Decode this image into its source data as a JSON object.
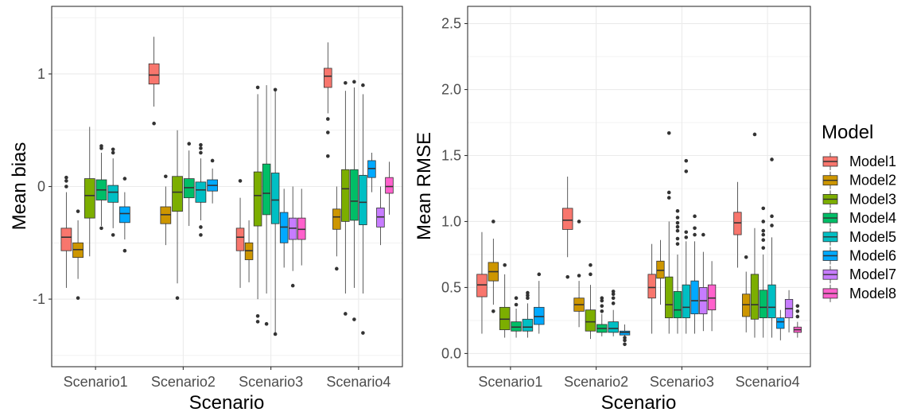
{
  "colors": {
    "Model1": "#F8766D",
    "Model2": "#CD9600",
    "Model3": "#7CAE00",
    "Model4": "#00BE67",
    "Model5": "#00BFC4",
    "Model6": "#00A9FF",
    "Model7": "#C77CFF",
    "Model8": "#FF61CC"
  },
  "legend": {
    "title": "Model",
    "labels": [
      "Model1",
      "Model2",
      "Model3",
      "Model4",
      "Model5",
      "Model6",
      "Model7",
      "Model8"
    ]
  },
  "chart_data": [
    {
      "type": "boxplot",
      "id": "bias",
      "xlabel": "Scenario",
      "ylabel": "Mean bias",
      "ylim": [
        -1.6,
        1.6
      ],
      "yticks": [
        -1,
        0,
        1
      ],
      "ytick_labels": [
        "-1",
        "0",
        "1"
      ],
      "categories": [
        "Scenario1",
        "Scenario2",
        "Scenario3",
        "Scenario4"
      ],
      "groups": [
        {
          "scenario": "Scenario1",
          "boxes": [
            {
              "model": "Model1",
              "whiskerLow": -0.9,
              "q1": -0.57,
              "median": -0.45,
              "q3": -0.37,
              "whiskerHigh": -0.05,
              "outliers": [
                0.0,
                0.05,
                0.08
              ]
            },
            {
              "model": "Model2",
              "whiskerLow": -0.82,
              "q1": -0.63,
              "median": -0.56,
              "q3": -0.5,
              "whiskerHigh": -0.3,
              "outliers": [
                -0.22,
                -0.99
              ]
            },
            {
              "model": "Model3",
              "whiskerLow": -0.62,
              "q1": -0.28,
              "median": -0.08,
              "q3": 0.07,
              "whiskerHigh": 0.53,
              "outliers": []
            },
            {
              "model": "Model4",
              "whiskerLow": -0.35,
              "q1": -0.12,
              "median": -0.03,
              "q3": 0.06,
              "whiskerHigh": 0.3,
              "outliers": [
                -0.37,
                0.34,
                0.36
              ]
            },
            {
              "model": "Model5",
              "whiskerLow": -0.37,
              "q1": -0.14,
              "median": -0.05,
              "q3": 0.01,
              "whiskerHigh": 0.25,
              "outliers": [
                -0.43,
                0.3,
                0.33
              ]
            },
            {
              "model": "Model6",
              "whiskerLow": -0.47,
              "q1": -0.32,
              "median": -0.24,
              "q3": -0.18,
              "whiskerHigh": -0.05,
              "outliers": [
                -0.57,
                0.07
              ]
            }
          ]
        },
        {
          "scenario": "Scenario2",
          "boxes": [
            {
              "model": "Model1",
              "whiskerLow": 0.71,
              "q1": 0.91,
              "median": 0.99,
              "q3": 1.09,
              "whiskerHigh": 1.33,
              "outliers": [
                0.56
              ]
            },
            {
              "model": "Model2",
              "whiskerLow": -0.52,
              "q1": -0.33,
              "median": -0.25,
              "q3": -0.18,
              "whiskerHigh": 0.0,
              "outliers": [
                0.09
              ]
            },
            {
              "model": "Model3",
              "whiskerLow": -0.86,
              "q1": -0.22,
              "median": -0.05,
              "q3": 0.09,
              "whiskerHigh": 0.5,
              "outliers": [
                -0.99
              ]
            },
            {
              "model": "Model4",
              "whiskerLow": -0.35,
              "q1": -0.1,
              "median": -0.01,
              "q3": 0.07,
              "whiskerHigh": 0.32,
              "outliers": [
                0.38
              ]
            },
            {
              "model": "Model5",
              "whiskerLow": -0.3,
              "q1": -0.14,
              "median": -0.03,
              "q3": 0.04,
              "whiskerHigh": 0.25,
              "outliers": [
                -0.36,
                -0.43,
                0.3,
                0.34,
                0.37
              ]
            },
            {
              "model": "Model6",
              "whiskerLow": -0.15,
              "q1": -0.04,
              "median": 0.01,
              "q3": 0.06,
              "whiskerHigh": 0.16,
              "outliers": [
                0.23
              ]
            }
          ]
        },
        {
          "scenario": "Scenario3",
          "boxes": [
            {
              "model": "Model1",
              "whiskerLow": -0.9,
              "q1": -0.57,
              "median": -0.45,
              "q3": -0.37,
              "whiskerHigh": -0.1,
              "outliers": [
                0.05
              ]
            },
            {
              "model": "Model2",
              "whiskerLow": -0.85,
              "q1": -0.65,
              "median": -0.57,
              "q3": -0.5,
              "whiskerHigh": -0.3,
              "outliers": []
            },
            {
              "model": "Model3",
              "whiskerLow": -1.0,
              "q1": -0.35,
              "median": -0.08,
              "q3": 0.13,
              "whiskerHigh": 0.82,
              "outliers": [
                -1.15,
                -1.2,
                0.88
              ]
            },
            {
              "model": "Model4",
              "whiskerLow": -0.95,
              "q1": -0.25,
              "median": -0.06,
              "q3": 0.2,
              "whiskerHigh": 0.9,
              "outliers": [
                -1.22
              ]
            },
            {
              "model": "Model5",
              "whiskerLow": -1.3,
              "q1": -0.33,
              "median": -0.12,
              "q3": 0.12,
              "whiskerHigh": 0.85,
              "outliers": [
                -1.31,
                0.86
              ]
            },
            {
              "model": "Model6",
              "whiskerLow": -0.72,
              "q1": -0.5,
              "median": -0.36,
              "q3": -0.23,
              "whiskerHigh": -0.02,
              "outliers": []
            },
            {
              "model": "Model7",
              "whiskerLow": -0.75,
              "q1": -0.47,
              "median": -0.37,
              "q3": -0.28,
              "whiskerHigh": 0.0,
              "outliers": [
                -0.88
              ]
            },
            {
              "model": "Model8",
              "whiskerLow": -0.7,
              "q1": -0.47,
              "median": -0.38,
              "q3": -0.28,
              "whiskerHigh": -0.02,
              "outliers": []
            }
          ]
        },
        {
          "scenario": "Scenario4",
          "boxes": [
            {
              "model": "Model1",
              "whiskerLow": 0.65,
              "q1": 0.88,
              "median": 0.98,
              "q3": 1.05,
              "whiskerHigh": 1.28,
              "outliers": [
                0.27,
                0.48,
                0.6
              ]
            },
            {
              "model": "Model2",
              "whiskerLow": -0.62,
              "q1": -0.38,
              "median": -0.27,
              "q3": -0.2,
              "whiskerHigh": 0.0,
              "outliers": [
                -0.73
              ]
            },
            {
              "model": "Model3",
              "whiskerLow": -0.95,
              "q1": -0.31,
              "median": -0.02,
              "q3": 0.15,
              "whiskerHigh": 0.85,
              "outliers": [
                -1.13,
                0.92
              ]
            },
            {
              "model": "Model4",
              "whiskerLow": -0.9,
              "q1": -0.3,
              "median": -0.13,
              "q3": 0.15,
              "whiskerHigh": 0.88,
              "outliers": [
                -1.18,
                0.93
              ]
            },
            {
              "model": "Model5",
              "whiskerLow": -0.95,
              "q1": -0.34,
              "median": -0.14,
              "q3": 0.1,
              "whiskerHigh": 0.82,
              "outliers": [
                -1.3,
                0.9
              ]
            },
            {
              "model": "Model6",
              "whiskerLow": -0.05,
              "q1": 0.08,
              "median": 0.16,
              "q3": 0.23,
              "whiskerHigh": 0.3,
              "outliers": []
            },
            {
              "model": "Model7",
              "whiskerLow": -0.52,
              "q1": -0.36,
              "median": -0.27,
              "q3": -0.19,
              "whiskerHigh": 0.0,
              "outliers": []
            },
            {
              "model": "Model8",
              "whiskerLow": -0.25,
              "q1": -0.06,
              "median": 0.0,
              "q3": 0.08,
              "whiskerHigh": 0.22,
              "outliers": []
            }
          ]
        }
      ]
    },
    {
      "type": "boxplot",
      "id": "rmse",
      "xlabel": "Scenario",
      "ylabel": "Mean RMSE",
      "ylim": [
        -0.1,
        2.63
      ],
      "yticks": [
        0,
        0.5,
        1,
        1.5,
        2,
        2.5
      ],
      "ytick_labels": [
        "0.0",
        "0.5",
        "1.0",
        "1.5",
        "2.0",
        "2.5"
      ],
      "categories": [
        "Scenario1",
        "Scenario2",
        "Scenario3",
        "Scenario4"
      ],
      "groups": [
        {
          "scenario": "Scenario1",
          "boxes": [
            {
              "model": "Model1",
              "whiskerLow": 0.15,
              "q1": 0.43,
              "median": 0.52,
              "q3": 0.6,
              "whiskerHigh": 0.92,
              "outliers": []
            },
            {
              "model": "Model2",
              "whiskerLow": 0.37,
              "q1": 0.55,
              "median": 0.62,
              "q3": 0.69,
              "whiskerHigh": 0.87,
              "outliers": [
                0.32,
                1.0
              ]
            },
            {
              "model": "Model3",
              "whiskerLow": 0.12,
              "q1": 0.18,
              "median": 0.26,
              "q3": 0.35,
              "whiskerHigh": 0.6,
              "outliers": [
                0.67
              ]
            },
            {
              "model": "Model4",
              "whiskerLow": 0.12,
              "q1": 0.17,
              "median": 0.2,
              "q3": 0.24,
              "whiskerHigh": 0.34,
              "outliers": [
                0.37,
                0.42
              ]
            },
            {
              "model": "Model5",
              "whiskerLow": 0.12,
              "q1": 0.17,
              "median": 0.2,
              "q3": 0.26,
              "whiskerHigh": 0.38,
              "outliers": [
                0.42,
                0.44,
                0.46
              ]
            },
            {
              "model": "Model6",
              "whiskerLow": 0.15,
              "q1": 0.22,
              "median": 0.28,
              "q3": 0.35,
              "whiskerHigh": 0.55,
              "outliers": [
                0.6
              ]
            }
          ]
        },
        {
          "scenario": "Scenario2",
          "boxes": [
            {
              "model": "Model1",
              "whiskerLow": 0.73,
              "q1": 0.94,
              "median": 1.01,
              "q3": 1.1,
              "whiskerHigh": 1.34,
              "outliers": [
                0.58
              ]
            },
            {
              "model": "Model2",
              "whiskerLow": 0.2,
              "q1": 0.32,
              "median": 0.37,
              "q3": 0.42,
              "whiskerHigh": 0.55,
              "outliers": [
                0.59,
                1.0
              ]
            },
            {
              "model": "Model3",
              "whiskerLow": 0.11,
              "q1": 0.17,
              "median": 0.24,
              "q3": 0.33,
              "whiskerHigh": 0.52,
              "outliers": [
                0.6,
                0.67
              ]
            },
            {
              "model": "Model4",
              "whiskerLow": 0.13,
              "q1": 0.16,
              "median": 0.19,
              "q3": 0.22,
              "whiskerHigh": 0.3,
              "outliers": [
                0.32,
                0.36,
                0.4,
                0.42
              ]
            },
            {
              "model": "Model5",
              "whiskerLow": 0.13,
              "q1": 0.16,
              "median": 0.19,
              "q3": 0.24,
              "whiskerHigh": 0.33,
              "outliers": [
                0.38,
                0.42,
                0.45,
                0.47
              ]
            },
            {
              "model": "Model6",
              "whiskerLow": 0.12,
              "q1": 0.14,
              "median": 0.16,
              "q3": 0.17,
              "whiskerHigh": 0.22,
              "outliers": [
                0.07,
                0.1,
                0.12
              ]
            }
          ]
        },
        {
          "scenario": "Scenario3",
          "boxes": [
            {
              "model": "Model1",
              "whiskerLow": 0.15,
              "q1": 0.42,
              "median": 0.5,
              "q3": 0.6,
              "whiskerHigh": 0.83,
              "outliers": []
            },
            {
              "model": "Model2",
              "whiskerLow": 0.37,
              "q1": 0.57,
              "median": 0.63,
              "q3": 0.7,
              "whiskerHigh": 0.86,
              "outliers": []
            },
            {
              "model": "Model3",
              "whiskerLow": 0.15,
              "q1": 0.27,
              "median": 0.37,
              "q3": 0.58,
              "whiskerHigh": 1.0,
              "outliers": [
                1.18,
                1.22,
                1.67
              ]
            },
            {
              "model": "Model4",
              "whiskerLow": 0.15,
              "q1": 0.27,
              "median": 0.33,
              "q3": 0.47,
              "whiskerHigh": 0.75,
              "outliers": [
                0.83,
                0.87,
                0.93,
                0.96,
                0.99,
                1.03,
                1.08
              ]
            },
            {
              "model": "Model5",
              "whiskerLow": 0.15,
              "q1": 0.27,
              "median": 0.35,
              "q3": 0.52,
              "whiskerHigh": 0.85,
              "outliers": [
                0.88,
                0.92,
                1.38,
                1.46
              ]
            },
            {
              "model": "Model6",
              "whiskerLow": 0.15,
              "q1": 0.3,
              "median": 0.4,
              "q3": 0.55,
              "whiskerHigh": 0.85,
              "outliers": [
                1.04,
                0.95,
                0.9
              ]
            },
            {
              "model": "Model7",
              "whiskerLow": 0.17,
              "q1": 0.3,
              "median": 0.4,
              "q3": 0.5,
              "whiskerHigh": 0.77,
              "outliers": [
                0.9
              ]
            },
            {
              "model": "Model8",
              "whiskerLow": 0.17,
              "q1": 0.33,
              "median": 0.42,
              "q3": 0.52,
              "whiskerHigh": 0.7,
              "outliers": []
            }
          ]
        },
        {
          "scenario": "Scenario4",
          "boxes": [
            {
              "model": "Model1",
              "whiskerLow": 0.65,
              "q1": 0.9,
              "median": 0.99,
              "q3": 1.07,
              "whiskerHigh": 1.3,
              "outliers": []
            },
            {
              "model": "Model2",
              "whiskerLow": 0.16,
              "q1": 0.28,
              "median": 0.37,
              "q3": 0.45,
              "whiskerHigh": 0.62,
              "outliers": [
                0.73
              ]
            },
            {
              "model": "Model3",
              "whiskerLow": 0.12,
              "q1": 0.26,
              "median": 0.37,
              "q3": 0.6,
              "whiskerHigh": 0.95,
              "outliers": [
                1.66
              ]
            },
            {
              "model": "Model4",
              "whiskerLow": 0.12,
              "q1": 0.27,
              "median": 0.35,
              "q3": 0.48,
              "whiskerHigh": 0.75,
              "outliers": [
                0.8,
                0.86,
                0.9,
                0.93,
                1.0,
                1.1
              ]
            },
            {
              "model": "Model5",
              "whiskerLow": 0.12,
              "q1": 0.27,
              "median": 0.35,
              "q3": 0.52,
              "whiskerHigh": 0.88,
              "outliers": [
                0.97,
                1.04,
                1.47
              ]
            },
            {
              "model": "Model6",
              "whiskerLow": 0.1,
              "q1": 0.19,
              "median": 0.24,
              "q3": 0.27,
              "whiskerHigh": 0.33,
              "outliers": []
            },
            {
              "model": "Model7",
              "whiskerLow": 0.16,
              "q1": 0.27,
              "median": 0.34,
              "q3": 0.41,
              "whiskerHigh": 0.48,
              "outliers": []
            },
            {
              "model": "Model8",
              "whiskerLow": 0.12,
              "q1": 0.16,
              "median": 0.18,
              "q3": 0.2,
              "whiskerHigh": 0.24,
              "outliers": [
                0.28,
                0.32,
                0.36
              ]
            }
          ]
        }
      ]
    }
  ]
}
